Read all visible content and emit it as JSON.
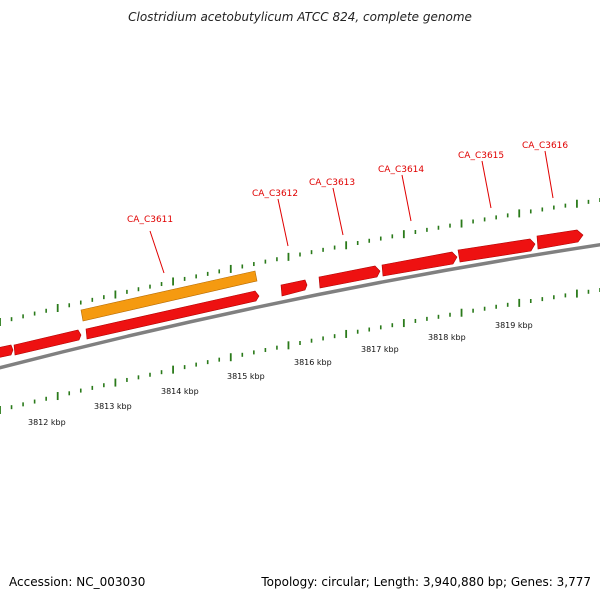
{
  "header": {
    "title": "Clostridium acetobutylicum ATCC 824, complete genome"
  },
  "footer": {
    "accession": "Accession: NC_003030",
    "stats": "Topology: circular; Length: 3,940,880 bp; Genes: 3,777"
  },
  "colors": {
    "cds_forward": "#ee1111",
    "cds_highlight": "#f59a10",
    "backbone": "#808080",
    "ticks": "#2a7a1a",
    "gene_label": "#e00000"
  },
  "scale": {
    "labels": [
      "3812 kbp",
      "3813 kbp",
      "3814 kbp",
      "3815 kbp",
      "3816 kbp",
      "3817 kbp",
      "3818 kbp",
      "3819 kbp"
    ]
  },
  "genes": {
    "labels": [
      "CA_C3611",
      "CA_C3612",
      "CA_C3613",
      "CA_C3614",
      "CA_C3615",
      "CA_C3616"
    ]
  }
}
